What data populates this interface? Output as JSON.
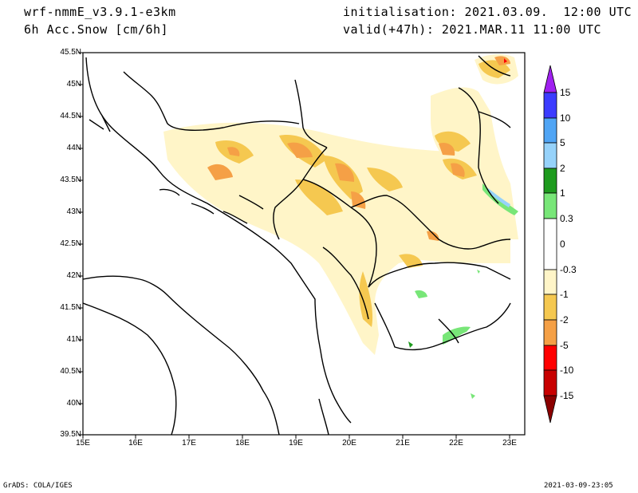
{
  "header": {
    "model": "wrf-nmmE_v3.9.1-e3km",
    "field": "6h Acc.Snow [cm/6h]",
    "init": "initialisation: 2021.03.09.  12:00 UTC",
    "valid": "valid(+47h): 2021.MAR.11 11:00 UTC"
  },
  "footer": {
    "left": "GrADS: COLA/IGES",
    "right": "2021-03-09-23:05"
  },
  "map": {
    "lat_labels": [
      "45.5N",
      "45N",
      "44.5N",
      "44N",
      "43.5N",
      "43N",
      "42.5N",
      "42N",
      "41.5N",
      "41N",
      "40.5N",
      "40N",
      "39.5N"
    ],
    "lon_labels": [
      "15E",
      "16E",
      "17E",
      "18E",
      "19E",
      "20E",
      "21E",
      "22E",
      "23E"
    ]
  },
  "colorbar": {
    "labels": [
      "15",
      "10",
      "5",
      "2",
      "1",
      "0.3",
      "0",
      "-0.3",
      "-1",
      "-2",
      "-5",
      "-10",
      "-15"
    ],
    "colors": {
      "top_arrow": "#a020f0",
      "c10_15": "#3c3cff",
      "c5_10": "#50a5f5",
      "c2_5": "#96d2fa",
      "c1_2": "#1e9b1e",
      "c03_1": "#78e678",
      "c0": "#ffffff",
      "cm03": "#fff5c8",
      "cm1": "#f5c850",
      "cm2": "#f5a046",
      "cm5": "#ff0000",
      "cm10": "#c80000",
      "bottom_arrow": "#8b0000"
    }
  }
}
